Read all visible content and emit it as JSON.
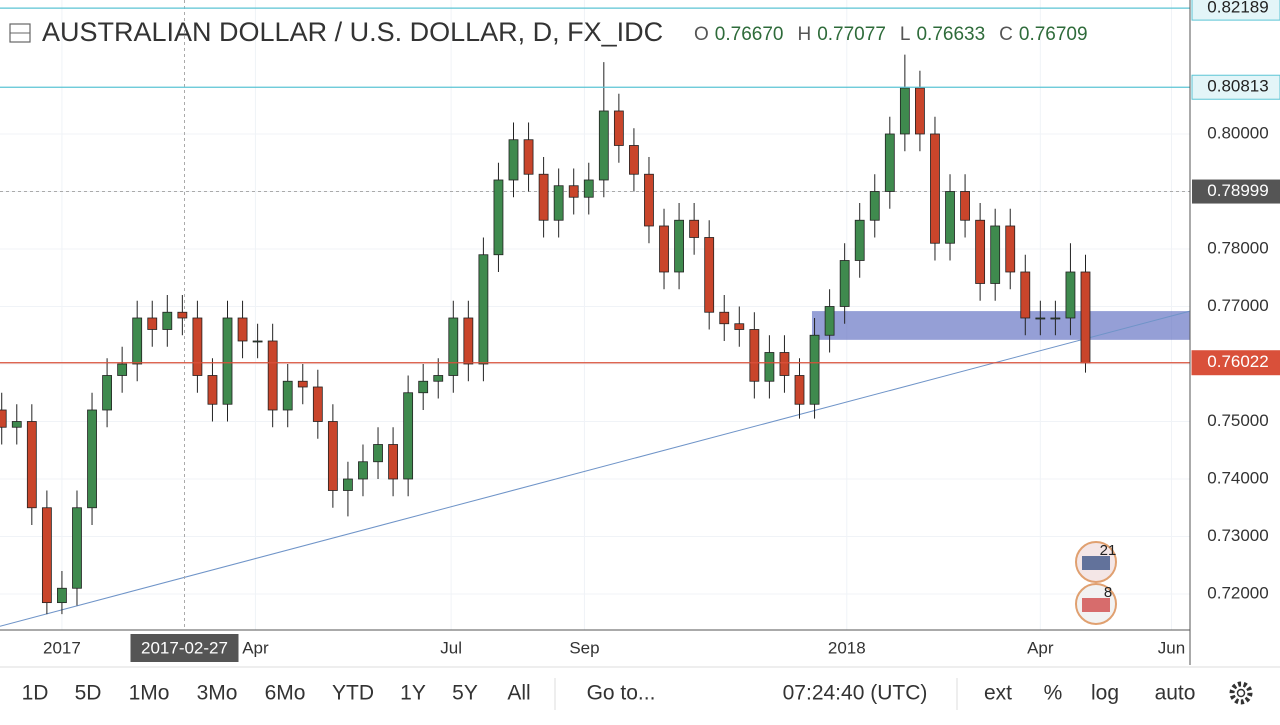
{
  "header": {
    "title": "AUSTRALIAN DOLLAR / U.S. DOLLAR, D, FX_IDC",
    "ohlc": [
      {
        "label": "O",
        "value": "0.76670"
      },
      {
        "label": "H",
        "value": "0.77077"
      },
      {
        "label": "L",
        "value": "0.76633"
      },
      {
        "label": "C",
        "value": "0.76709"
      }
    ]
  },
  "chart_data": {
    "type": "candlestick",
    "x": [
      -28,
      -21,
      -14,
      -7,
      0,
      7,
      14,
      21,
      28,
      35,
      42,
      49,
      56,
      63,
      70,
      77,
      84,
      91,
      98,
      105,
      112,
      119,
      126,
      133,
      140,
      147,
      154,
      161,
      168,
      175,
      182,
      189,
      196,
      203,
      210,
      217,
      224,
      231,
      238,
      245,
      252,
      259,
      266,
      273,
      280,
      287,
      294,
      301,
      308,
      315,
      322,
      329,
      336,
      343,
      350,
      357,
      364,
      371,
      378,
      385,
      392,
      399,
      406,
      413,
      420,
      427,
      434,
      441,
      448,
      455,
      462,
      469,
      476
    ],
    "open": [
      0.752,
      0.749,
      0.75,
      0.735,
      0.7185,
      0.721,
      0.735,
      0.752,
      0.758,
      0.76,
      0.768,
      0.766,
      0.769,
      0.768,
      0.758,
      0.753,
      0.768,
      0.764,
      0.764,
      0.752,
      0.757,
      0.756,
      0.75,
      0.738,
      0.74,
      0.743,
      0.746,
      0.74,
      0.755,
      0.757,
      0.758,
      0.768,
      0.76,
      0.779,
      0.792,
      0.799,
      0.793,
      0.785,
      0.791,
      0.789,
      0.792,
      0.804,
      0.798,
      0.793,
      0.784,
      0.776,
      0.785,
      0.782,
      0.769,
      0.767,
      0.766,
      0.757,
      0.762,
      0.758,
      0.753,
      0.765,
      0.77,
      0.778,
      0.785,
      0.79,
      0.8,
      0.808,
      0.8,
      0.781,
      0.79,
      0.785,
      0.774,
      0.784,
      0.776,
      0.768,
      0.768,
      0.768,
      0.776
    ],
    "high": [
      0.755,
      0.753,
      0.753,
      0.738,
      0.724,
      0.738,
      0.755,
      0.761,
      0.763,
      0.771,
      0.771,
      0.772,
      0.772,
      0.771,
      0.761,
      0.771,
      0.771,
      0.767,
      0.767,
      0.76,
      0.76,
      0.759,
      0.753,
      0.743,
      0.746,
      0.749,
      0.749,
      0.758,
      0.76,
      0.761,
      0.771,
      0.771,
      0.782,
      0.795,
      0.802,
      0.802,
      0.796,
      0.794,
      0.794,
      0.795,
      0.8125,
      0.807,
      0.801,
      0.796,
      0.787,
      0.788,
      0.788,
      0.785,
      0.772,
      0.77,
      0.769,
      0.765,
      0.765,
      0.761,
      0.768,
      0.773,
      0.781,
      0.788,
      0.793,
      0.803,
      0.8138,
      0.811,
      0.803,
      0.793,
      0.793,
      0.788,
      0.787,
      0.787,
      0.779,
      0.771,
      0.771,
      0.781,
      0.779
    ],
    "low": [
      0.746,
      0.746,
      0.732,
      0.7165,
      0.7165,
      0.718,
      0.732,
      0.749,
      0.755,
      0.757,
      0.763,
      0.763,
      0.765,
      0.755,
      0.75,
      0.75,
      0.761,
      0.761,
      0.749,
      0.749,
      0.753,
      0.747,
      0.735,
      0.7335,
      0.737,
      0.74,
      0.737,
      0.737,
      0.752,
      0.754,
      0.755,
      0.757,
      0.757,
      0.776,
      0.789,
      0.79,
      0.782,
      0.782,
      0.786,
      0.786,
      0.789,
      0.795,
      0.79,
      0.781,
      0.773,
      0.773,
      0.779,
      0.766,
      0.764,
      0.763,
      0.754,
      0.754,
      0.755,
      0.7505,
      0.7505,
      0.762,
      0.767,
      0.775,
      0.782,
      0.787,
      0.797,
      0.797,
      0.778,
      0.778,
      0.782,
      0.771,
      0.771,
      0.773,
      0.765,
      0.765,
      0.765,
      0.765,
      0.7585
    ],
    "close": [
      0.749,
      0.75,
      0.735,
      0.7185,
      0.721,
      0.735,
      0.752,
      0.758,
      0.76,
      0.768,
      0.766,
      0.769,
      0.768,
      0.758,
      0.753,
      0.768,
      0.764,
      0.764,
      0.752,
      0.757,
      0.756,
      0.75,
      0.738,
      0.74,
      0.743,
      0.746,
      0.74,
      0.755,
      0.757,
      0.758,
      0.768,
      0.76,
      0.779,
      0.792,
      0.799,
      0.793,
      0.785,
      0.791,
      0.789,
      0.792,
      0.804,
      0.798,
      0.793,
      0.784,
      0.776,
      0.785,
      0.782,
      0.769,
      0.767,
      0.766,
      0.757,
      0.762,
      0.758,
      0.753,
      0.765,
      0.77,
      0.778,
      0.785,
      0.79,
      0.8,
      0.808,
      0.8,
      0.781,
      0.79,
      0.785,
      0.774,
      0.784,
      0.776,
      0.768,
      0.768,
      0.768,
      0.776,
      0.7602
    ],
    "up_color": "#3f8a4e",
    "down_color": "#c9452b",
    "xlim": [
      -28.8,
      524.6
    ],
    "ylim": [
      0.71374,
      0.8233
    ],
    "xticks": [
      {
        "value": 0,
        "label": "2017"
      },
      {
        "value": 90,
        "label": "Apr"
      },
      {
        "value": 181,
        "label": "Jul"
      },
      {
        "value": 243,
        "label": "Sep"
      },
      {
        "value": 365,
        "label": "2018"
      },
      {
        "value": 455,
        "label": "Apr"
      },
      {
        "value": 516,
        "label": "Jun"
      }
    ],
    "yticks": [
      {
        "value": 0.72,
        "label": "0.72000"
      },
      {
        "value": 0.73,
        "label": "0.73000"
      },
      {
        "value": 0.74,
        "label": "0.74000"
      },
      {
        "value": 0.75,
        "label": "0.75000"
      },
      {
        "value": 0.76,
        "label": "0.76000"
      },
      {
        "value": 0.77,
        "label": "0.77000"
      },
      {
        "value": 0.78,
        "label": "0.78000"
      },
      {
        "value": 0.79,
        "label": "0.79000"
      },
      {
        "value": 0.8,
        "label": "0.80000"
      }
    ],
    "grid": true,
    "price_lines": [
      {
        "value": 0.82189,
        "color": "#5bc4d4"
      },
      {
        "value": 0.80813,
        "color": "#5bc4d4"
      },
      {
        "value": 0.76022,
        "color": "#d9503a"
      }
    ],
    "crosshair": {
      "x": 57,
      "x_label": "2017-02-27",
      "y": 0.78999
    },
    "zone": {
      "x": [
        348.8,
        524.6
      ],
      "y": [
        0.7642,
        0.7692
      ],
      "color": "#5c6bc0"
    },
    "trendline": {
      "x": [
        -28.8,
        524.6
      ],
      "y": [
        0.7144,
        0.7692
      ],
      "color": "#6f94c8"
    },
    "events": [
      21,
      8
    ]
  },
  "toolbar": {
    "ranges": [
      "1D",
      "5D",
      "1Mo",
      "3Mo",
      "6Mo",
      "YTD",
      "1Y",
      "5Y",
      "All"
    ],
    "goto": "Go to...",
    "clock": "07:24:40 (UTC)",
    "options": [
      "ext",
      "%",
      "log",
      "auto"
    ]
  }
}
